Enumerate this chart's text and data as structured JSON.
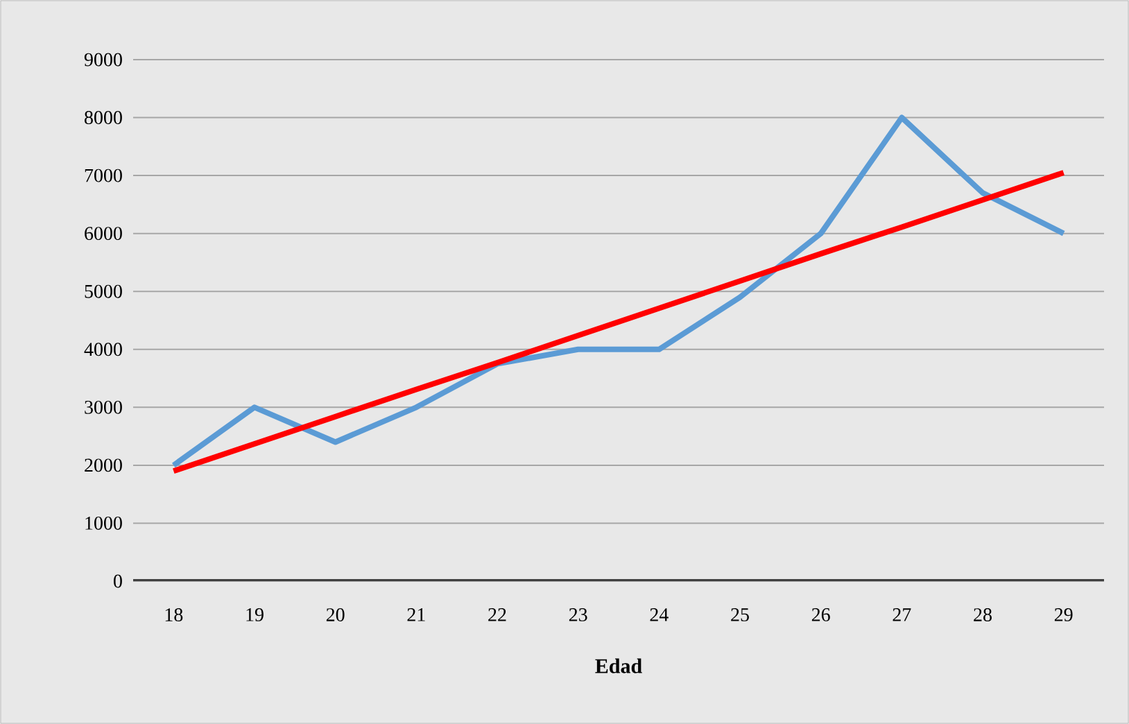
{
  "chart_data": {
    "type": "line",
    "xlabel": "Edad",
    "categories": [
      "18",
      "19",
      "20",
      "21",
      "22",
      "23",
      "24",
      "25",
      "26",
      "27",
      "28",
      "29"
    ],
    "series": [
      {
        "color": "#5b9bd5",
        "values": [
          2000,
          3000,
          2400,
          3000,
          3750,
          4000,
          4000,
          4900,
          6000,
          8000,
          6700,
          6000
        ]
      },
      {
        "color": "#ff0000",
        "values": [
          1900,
          2370,
          2840,
          3310,
          3770,
          4240,
          4710,
          5180,
          5650,
          6110,
          6580,
          7050
        ]
      }
    ],
    "ylim": [
      0,
      9000
    ],
    "yticks": [
      0,
      1000,
      2000,
      3000,
      4000,
      5000,
      6000,
      7000,
      8000,
      9000
    ],
    "grid": "y",
    "marker": "none"
  }
}
